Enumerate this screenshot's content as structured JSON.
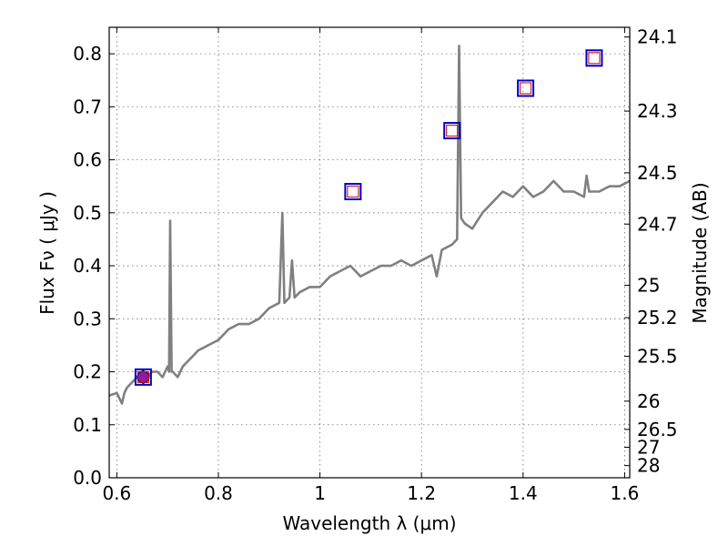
{
  "chart_data": {
    "type": "line",
    "title": "",
    "xlabel": "Wavelength  λ (μm)",
    "ylabel": "Flux  Fν  ( μJy )",
    "ylabel_right": "Magnitude (AB)",
    "xlim": [
      0.585,
      1.61
    ],
    "ylim": [
      0.0,
      0.85
    ],
    "x_ticks": [
      0.6,
      0.8,
      1.0,
      1.2,
      1.4,
      1.6
    ],
    "x_tick_labels": [
      "0.6",
      "0.8",
      "1",
      "1.2",
      "1.4",
      "1.6"
    ],
    "y_ticks": [
      0.0,
      0.1,
      0.2,
      0.3,
      0.4,
      0.5,
      0.6,
      0.7,
      0.8
    ],
    "y_tick_labels": [
      "0.0",
      "0.1",
      "0.2",
      "0.3",
      "0.4",
      "0.5",
      "0.6",
      "0.7",
      "0.8"
    ],
    "magnitude_ticks": [
      "24.1",
      "24.3",
      "24.5",
      "24.7",
      "25",
      "25.2",
      "25.5",
      "26",
      "26.5",
      "27",
      "28"
    ],
    "grid": true,
    "colors": {
      "spectrum": "#808080",
      "square_outer": "#0000cc",
      "square_inner": "#cc0000",
      "observed_point": "#8b1aa6"
    },
    "series": [
      {
        "type": "line",
        "x": [
          0.585,
          0.6,
          0.61,
          0.615,
          0.62,
          0.63,
          0.64,
          0.65,
          0.66,
          0.67,
          0.68,
          0.69,
          0.7,
          0.703,
          0.705,
          0.708,
          0.71,
          0.72,
          0.73,
          0.74,
          0.75,
          0.76,
          0.78,
          0.8,
          0.82,
          0.84,
          0.86,
          0.88,
          0.9,
          0.92,
          0.926,
          0.93,
          0.94,
          0.945,
          0.95,
          0.96,
          0.98,
          1.0,
          1.02,
          1.04,
          1.06,
          1.08,
          1.1,
          1.12,
          1.14,
          1.16,
          1.18,
          1.2,
          1.22,
          1.23,
          1.24,
          1.26,
          1.27,
          1.274,
          1.278,
          1.285,
          1.3,
          1.32,
          1.34,
          1.36,
          1.38,
          1.4,
          1.42,
          1.44,
          1.46,
          1.48,
          1.5,
          1.52,
          1.525,
          1.53,
          1.55,
          1.57,
          1.59,
          1.61
        ],
        "y": [
          0.155,
          0.16,
          0.14,
          0.16,
          0.17,
          0.18,
          0.19,
          0.2,
          0.19,
          0.2,
          0.2,
          0.19,
          0.21,
          0.2,
          0.485,
          0.2,
          0.2,
          0.19,
          0.21,
          0.22,
          0.23,
          0.24,
          0.25,
          0.26,
          0.28,
          0.29,
          0.29,
          0.3,
          0.32,
          0.33,
          0.5,
          0.33,
          0.34,
          0.41,
          0.34,
          0.35,
          0.36,
          0.36,
          0.38,
          0.39,
          0.4,
          0.38,
          0.39,
          0.4,
          0.4,
          0.41,
          0.4,
          0.41,
          0.42,
          0.38,
          0.43,
          0.44,
          0.45,
          0.815,
          0.49,
          0.48,
          0.47,
          0.5,
          0.52,
          0.54,
          0.53,
          0.55,
          0.53,
          0.54,
          0.56,
          0.54,
          0.54,
          0.53,
          0.57,
          0.54,
          0.54,
          0.55,
          0.55,
          0.56
        ]
      },
      {
        "type": "scatter",
        "marker": "square",
        "x": [
          0.652,
          1.065,
          1.26,
          1.405,
          1.54
        ],
        "y": [
          0.19,
          0.54,
          0.655,
          0.735,
          0.792
        ]
      },
      {
        "type": "scatter",
        "marker": "circle-errorbar",
        "x": [
          0.652
        ],
        "y": [
          0.19
        ],
        "yerr": [
          0.015
        ]
      }
    ]
  }
}
